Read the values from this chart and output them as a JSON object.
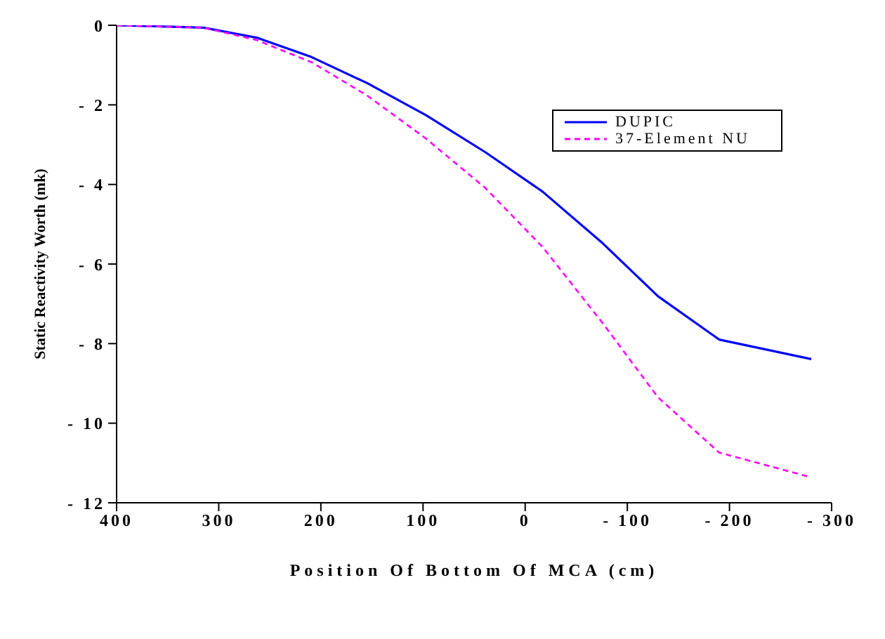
{
  "chart_data": {
    "type": "line",
    "xlabel": "Position Of Bottom Of MCA (cm)",
    "ylabel": "Static Reactivity Worth (mk)",
    "x": [
      400,
      315,
      263,
      209,
      155,
      97,
      39,
      -17,
      -76,
      -130,
      -190,
      -280
    ],
    "series": [
      {
        "name": "DUPIC",
        "color": "#0000ff",
        "line_style": "solid",
        "values": [
          0,
          -0.06,
          -0.31,
          -0.8,
          -1.45,
          -2.26,
          -3.19,
          -4.18,
          -5.48,
          -6.81,
          -7.9,
          -8.39
        ]
      },
      {
        "name": "37-Element NU",
        "color": "#ff00ff",
        "line_style": "dashed",
        "values": [
          0,
          -0.06,
          -0.37,
          -0.93,
          -1.76,
          -2.85,
          -4.09,
          -5.57,
          -7.49,
          -9.35,
          -10.74,
          -11.36
        ]
      }
    ],
    "xlim": [
      400,
      -300
    ],
    "xticks": [
      400,
      300,
      200,
      100,
      0,
      {
        "value": -100,
        "label": "- 100"
      },
      {
        "value": -200,
        "label": "- 200"
      },
      {
        "value": -300,
        "label": "- 300"
      }
    ],
    "ylim": [
      -12,
      0
    ],
    "yticks": [
      0,
      {
        "value": -2,
        "label": "- 2"
      },
      {
        "value": -4,
        "label": "- 4"
      },
      {
        "value": -6,
        "label": "- 6"
      },
      {
        "value": -8,
        "label": "- 8"
      },
      {
        "value": -10,
        "label": "- 10"
      },
      {
        "value": -12,
        "label": "- 12"
      }
    ],
    "grid": false,
    "legend": "top right",
    "marker": "none"
  }
}
